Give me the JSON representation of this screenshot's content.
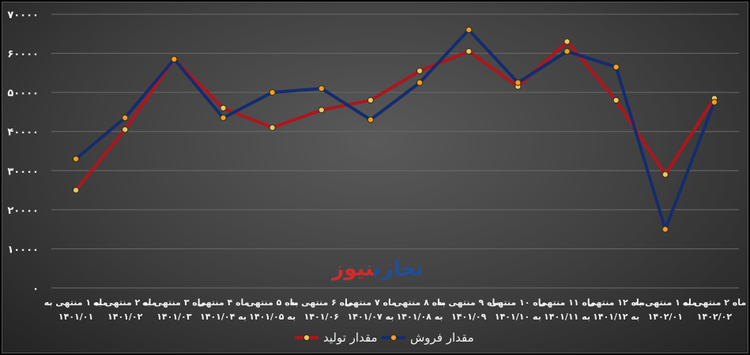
{
  "chart_data": {
    "type": "line",
    "categories": [
      [
        "ماه ۱ منتهی به",
        "۱۴۰۱/۰۱"
      ],
      [
        "ماه ۲ منتهی به",
        "۱۴۰۱/۰۲"
      ],
      [
        "ماه ۳ منتهی به",
        "۱۴۰۱/۰۳"
      ],
      [
        "ماه ۴ منتهی",
        "به ۱۴۰۱/۰۴"
      ],
      [
        "ماه ۵ منتهی",
        "به ۱۴۰۱/۰۵"
      ],
      [
        "ماه ۶ منتهی به",
        "۱۴۰۱/۰۶"
      ],
      [
        "ماه ۷ منتهی",
        "به ۱۴۰۱/۰۷"
      ],
      [
        "ماه ۸ منتهی",
        "به ۱۴۰۱/۰۸"
      ],
      [
        "ماه ۹ منتهی به",
        "۱۴۰۱/۰۹"
      ],
      [
        "ماه ۱۰ منتهی",
        "به ۱۴۰۱/۱۰"
      ],
      [
        "ماه ۱۱ منتهی",
        "به ۱۴۰۱/۱۱"
      ],
      [
        "ماه ۱۲ منتهی",
        "به ۱۴۰۱/۱۲"
      ],
      [
        "ماه ۱ منتهی به",
        "۱۴۰۲/۰۱"
      ],
      [
        "ماه ۲ منتهی به",
        "۱۴۰۲/۰۲"
      ]
    ],
    "series": [
      {
        "name": "مقدار تولید",
        "color": "#b0151c",
        "values": [
          25000,
          40500,
          58500,
          46000,
          41000,
          45500,
          48000,
          55500,
          60500,
          51500,
          63000,
          48000,
          29000,
          48500
        ]
      },
      {
        "name": "مقدار فروش",
        "color": "#152c6e",
        "values": [
          33000,
          43500,
          58500,
          43500,
          50000,
          51000,
          43000,
          52500,
          66000,
          52500,
          60500,
          56500,
          15000,
          47500
        ]
      }
    ],
    "yticks": [
      "۰",
      "۱۰۰۰۰",
      "۲۰۰۰۰",
      "۳۰۰۰۰",
      "۴۰۰۰۰",
      "۵۰۰۰۰",
      "۶۰۰۰۰",
      "۷۰۰۰۰"
    ],
    "ylim": [
      0,
      70000
    ],
    "grid": true,
    "legend_position": "bottom",
    "watermark": [
      "تجارت",
      "نیوز"
    ]
  }
}
